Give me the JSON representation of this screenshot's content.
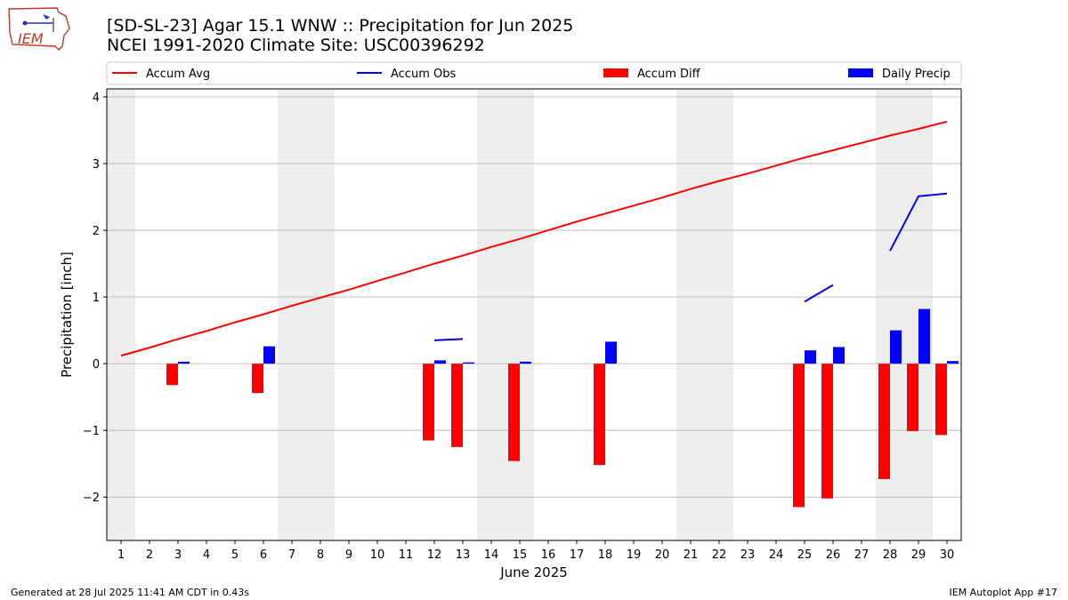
{
  "header": {
    "title_line1": "[SD-SL-23] Agar 15.1 WNW :: Precipitation for Jun 2025",
    "title_line2": "NCEI 1991-2020 Climate Site: USC00396292",
    "logo_text": "IEM"
  },
  "footer": {
    "generated": "Generated at 28 Jul 2025 11:41 AM CDT in 0.43s",
    "app": "IEM Autoplot App #17"
  },
  "colors": {
    "accum_avg": "#ff0000",
    "accum_obs": "#0000ff",
    "accum_diff": "#ff0000",
    "daily_precip": "#0000ff",
    "weekend_shade": "#eeeeee",
    "grid": "#b0b0b0"
  },
  "chart_data": {
    "type": "bar",
    "xlabel": "June 2025",
    "ylabel": "Precipitation [inch]",
    "ylim": [
      -2.65,
      4.12
    ],
    "yticks": [
      4,
      3,
      2,
      1,
      0,
      -1,
      -2
    ],
    "ytick_labels": [
      "4",
      "3",
      "2",
      "1",
      "0",
      "−1",
      "−2"
    ],
    "days": [
      1,
      2,
      3,
      4,
      5,
      6,
      7,
      8,
      9,
      10,
      11,
      12,
      13,
      14,
      15,
      16,
      17,
      18,
      19,
      20,
      21,
      22,
      23,
      24,
      25,
      26,
      27,
      28,
      29,
      30
    ],
    "grid": "horizontal",
    "legend_position": "top",
    "shaded_day_ranges": [
      [
        1,
        1
      ],
      [
        7,
        8
      ],
      [
        14,
        15
      ],
      [
        21,
        22
      ],
      [
        28,
        29
      ]
    ],
    "series": [
      {
        "name": "Accum Avg",
        "kind": "line",
        "values": [
          0.12,
          0.24,
          0.37,
          0.49,
          0.62,
          0.74,
          0.87,
          0.99,
          1.11,
          1.24,
          1.37,
          1.5,
          1.62,
          1.75,
          1.87,
          2.0,
          2.13,
          2.25,
          2.37,
          2.49,
          2.62,
          2.74,
          2.85,
          2.97,
          3.09,
          3.2,
          3.31,
          3.42,
          3.52,
          3.63
        ]
      },
      {
        "name": "Accum Obs",
        "kind": "line",
        "values": [
          null,
          null,
          null,
          null,
          null,
          null,
          null,
          null,
          null,
          null,
          null,
          0.35,
          0.37,
          null,
          null,
          null,
          null,
          null,
          null,
          null,
          null,
          null,
          null,
          null,
          0.93,
          1.18,
          null,
          1.69,
          2.51,
          2.55
        ]
      },
      {
        "name": "Accum Diff",
        "kind": "bar",
        "values": [
          0,
          0,
          -0.32,
          0,
          0,
          -0.44,
          0,
          0,
          0,
          0,
          0,
          -1.15,
          -1.25,
          0,
          -1.46,
          0,
          0,
          -1.52,
          0,
          0,
          0,
          0,
          0,
          0,
          -2.15,
          -2.02,
          0,
          -1.73,
          -1.01,
          -1.07
        ]
      },
      {
        "name": "Daily Precip",
        "kind": "bar",
        "values": [
          0,
          0,
          0.03,
          0,
          0,
          0.26,
          0,
          0,
          0,
          0,
          0,
          0.05,
          0.02,
          0,
          0.03,
          0,
          0,
          0.33,
          0,
          0,
          0,
          0,
          0,
          0,
          0.2,
          0.25,
          0,
          0.5,
          0.82,
          0.04
        ]
      }
    ]
  }
}
